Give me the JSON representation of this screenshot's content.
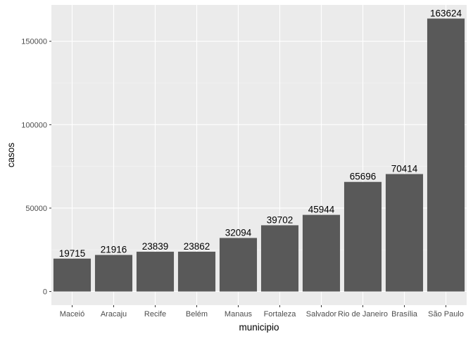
{
  "chart_data": {
    "type": "bar",
    "title": "",
    "xlabel": "municipio",
    "ylabel": "casos",
    "categories": [
      "Maceió",
      "Aracaju",
      "Recife",
      "Belém",
      "Manaus",
      "Fortaleza",
      "Salvador",
      "Rio de Janeiro",
      "Brasília",
      "São Paulo"
    ],
    "values": [
      19715,
      21916,
      23839,
      23862,
      32094,
      39702,
      45944,
      65696,
      70414,
      163624
    ],
    "data_labels": [
      "19715",
      "21916",
      "23839",
      "23862",
      "32094",
      "39702",
      "45944",
      "65696",
      "70414",
      "163624"
    ],
    "y_ticks": [
      0,
      50000,
      100000,
      150000
    ],
    "y_tick_labels": [
      "0",
      "50000",
      "100000",
      "150000"
    ],
    "ylim": [
      -8181,
      171805
    ],
    "grid": true,
    "legend": "none",
    "colors": {
      "panel_background": "#ebebeb",
      "grid_major": "#ffffff",
      "grid_minor": "#f5f5f5",
      "bar_fill": "#595959",
      "tick_mark": "#333333"
    }
  }
}
